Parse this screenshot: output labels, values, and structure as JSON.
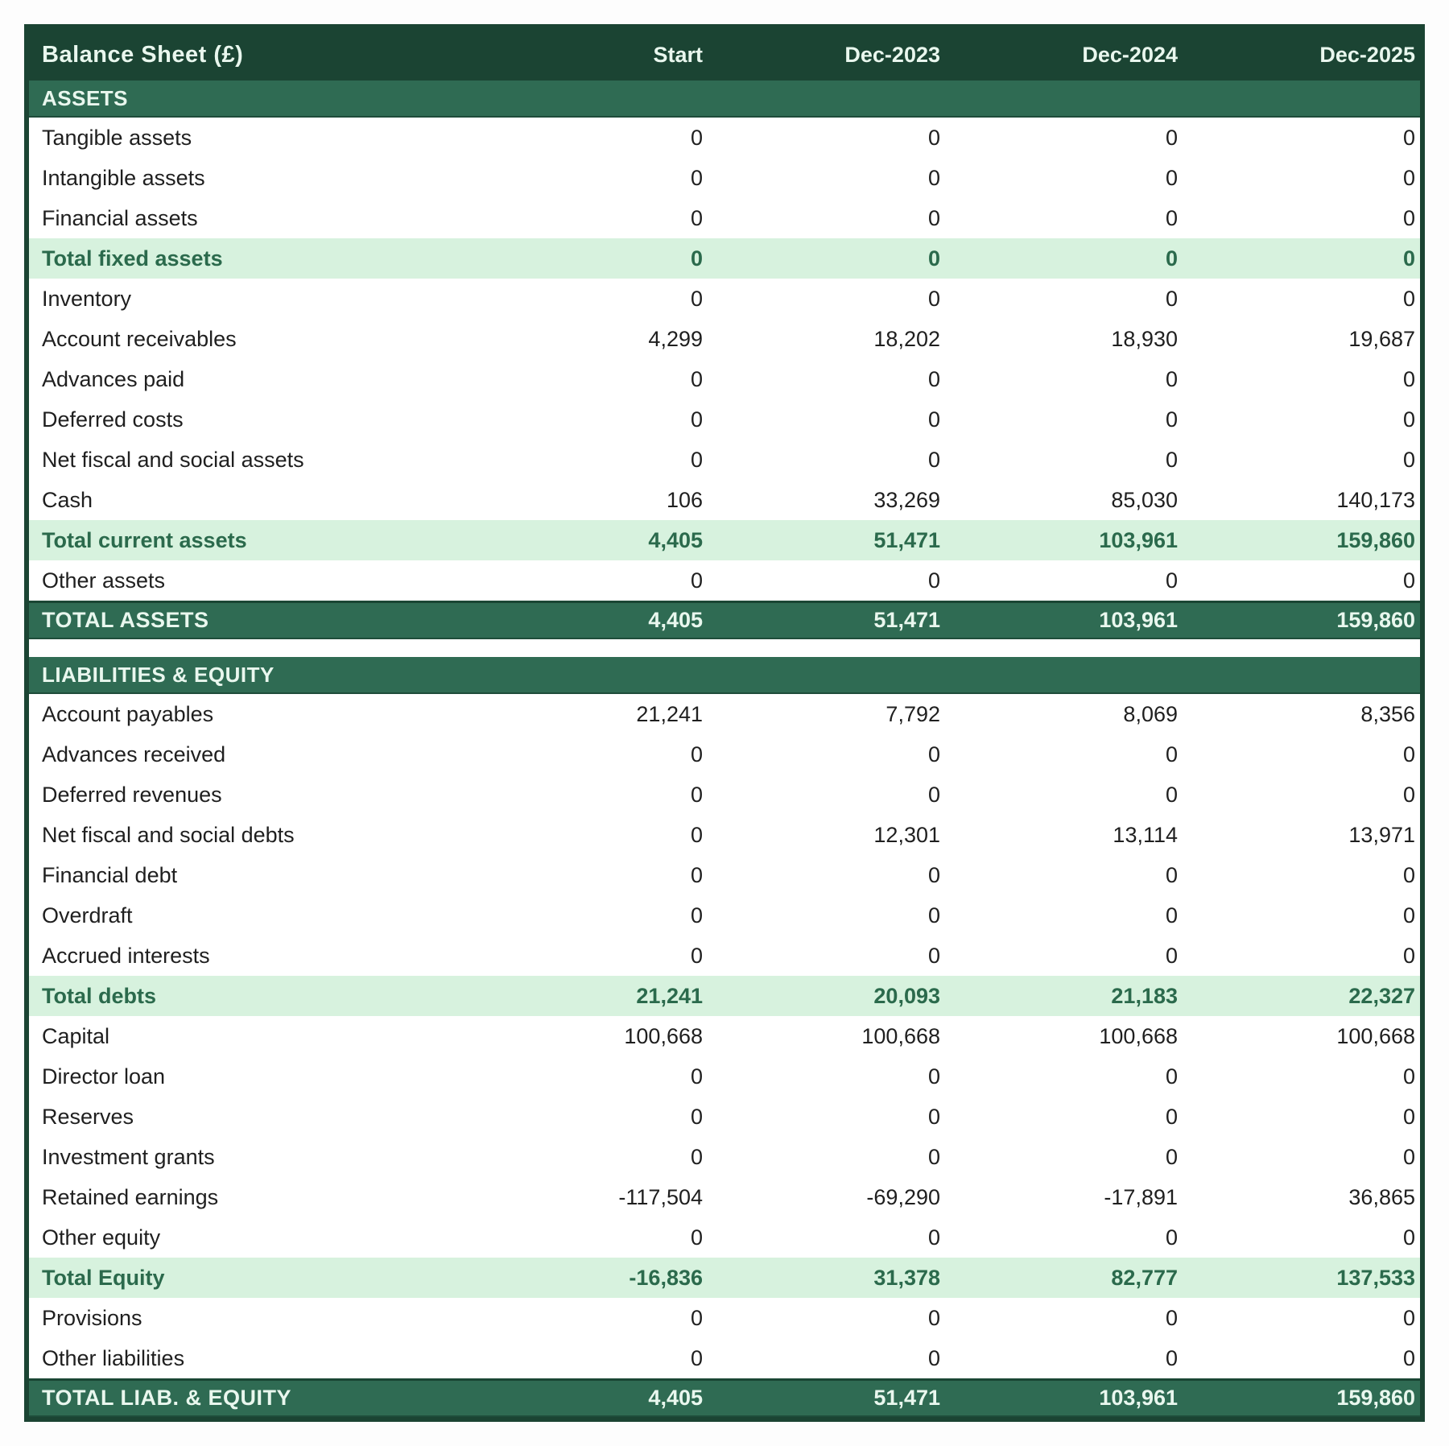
{
  "table": {
    "title": "Balance Sheet (£)",
    "columns": [
      "Start",
      "Dec-2023",
      "Dec-2024",
      "Dec-2025"
    ],
    "rows": [
      {
        "type": "section",
        "label": "ASSETS"
      },
      {
        "type": "data",
        "label": "Tangible assets",
        "values": [
          "0",
          "0",
          "0",
          "0"
        ]
      },
      {
        "type": "data",
        "label": "Intangible assets",
        "values": [
          "0",
          "0",
          "0",
          "0"
        ]
      },
      {
        "type": "data",
        "label": "Financial assets",
        "values": [
          "0",
          "0",
          "0",
          "0"
        ]
      },
      {
        "type": "subtotal",
        "label": "Total fixed assets",
        "values": [
          "0",
          "0",
          "0",
          "0"
        ]
      },
      {
        "type": "data",
        "label": "Inventory",
        "values": [
          "0",
          "0",
          "0",
          "0"
        ]
      },
      {
        "type": "data",
        "label": "Account receivables",
        "values": [
          "4,299",
          "18,202",
          "18,930",
          "19,687"
        ]
      },
      {
        "type": "data",
        "label": "Advances paid",
        "values": [
          "0",
          "0",
          "0",
          "0"
        ]
      },
      {
        "type": "data",
        "label": "Deferred costs",
        "values": [
          "0",
          "0",
          "0",
          "0"
        ]
      },
      {
        "type": "data",
        "label": "Net fiscal and social assets",
        "values": [
          "0",
          "0",
          "0",
          "0"
        ]
      },
      {
        "type": "data",
        "label": "Cash",
        "values": [
          "106",
          "33,269",
          "85,030",
          "140,173"
        ]
      },
      {
        "type": "subtotal",
        "label": "Total current assets",
        "values": [
          "4,405",
          "51,471",
          "103,961",
          "159,860"
        ]
      },
      {
        "type": "data",
        "label": "Other assets",
        "values": [
          "0",
          "0",
          "0",
          "0"
        ]
      },
      {
        "type": "grand",
        "label": "TOTAL ASSETS",
        "values": [
          "4,405",
          "51,471",
          "103,961",
          "159,860"
        ]
      },
      {
        "type": "spacer"
      },
      {
        "type": "section",
        "label": "LIABILITIES & EQUITY"
      },
      {
        "type": "data",
        "label": "Account payables",
        "values": [
          "21,241",
          "7,792",
          "8,069",
          "8,356"
        ]
      },
      {
        "type": "data",
        "label": "Advances received",
        "values": [
          "0",
          "0",
          "0",
          "0"
        ]
      },
      {
        "type": "data",
        "label": "Deferred revenues",
        "values": [
          "0",
          "0",
          "0",
          "0"
        ]
      },
      {
        "type": "data",
        "label": "Net fiscal and social debts",
        "values": [
          "0",
          "12,301",
          "13,114",
          "13,971"
        ]
      },
      {
        "type": "data",
        "label": "Financial debt",
        "values": [
          "0",
          "0",
          "0",
          "0"
        ]
      },
      {
        "type": "data",
        "label": "Overdraft",
        "values": [
          "0",
          "0",
          "0",
          "0"
        ]
      },
      {
        "type": "data",
        "label": "Accrued interests",
        "values": [
          "0",
          "0",
          "0",
          "0"
        ]
      },
      {
        "type": "subtotal",
        "label": "Total debts",
        "values": [
          "21,241",
          "20,093",
          "21,183",
          "22,327"
        ]
      },
      {
        "type": "data",
        "label": "Capital",
        "values": [
          "100,668",
          "100,668",
          "100,668",
          "100,668"
        ]
      },
      {
        "type": "data",
        "label": "Director loan",
        "values": [
          "0",
          "0",
          "0",
          "0"
        ]
      },
      {
        "type": "data",
        "label": "Reserves",
        "values": [
          "0",
          "0",
          "0",
          "0"
        ]
      },
      {
        "type": "data",
        "label": "Investment grants",
        "values": [
          "0",
          "0",
          "0",
          "0"
        ]
      },
      {
        "type": "data",
        "label": "Retained earnings",
        "values": [
          "-117,504",
          "-69,290",
          "-17,891",
          "36,865"
        ]
      },
      {
        "type": "data",
        "label": "Other equity",
        "values": [
          "0",
          "0",
          "0",
          "0"
        ]
      },
      {
        "type": "subtotal",
        "label": "Total Equity",
        "values": [
          "-16,836",
          "31,378",
          "82,777",
          "137,533"
        ]
      },
      {
        "type": "data",
        "label": "Provisions",
        "values": [
          "0",
          "0",
          "0",
          "0"
        ]
      },
      {
        "type": "data",
        "label": "Other liabilities",
        "values": [
          "0",
          "0",
          "0",
          "0"
        ]
      },
      {
        "type": "grand",
        "label": "TOTAL LIAB. & EQUITY",
        "values": [
          "4,405",
          "51,471",
          "103,961",
          "159,860"
        ]
      }
    ]
  },
  "colors": {
    "header_bg": "#1b4433",
    "section_bg": "#2f6b53",
    "row_bg": "#ffffff",
    "subtotal_bg": "#d7f2de",
    "subtotal_text": "#2b6a4c",
    "light_text": "#e9f7ee",
    "body_text": "#1f1f1f",
    "border": "#1b4433"
  }
}
